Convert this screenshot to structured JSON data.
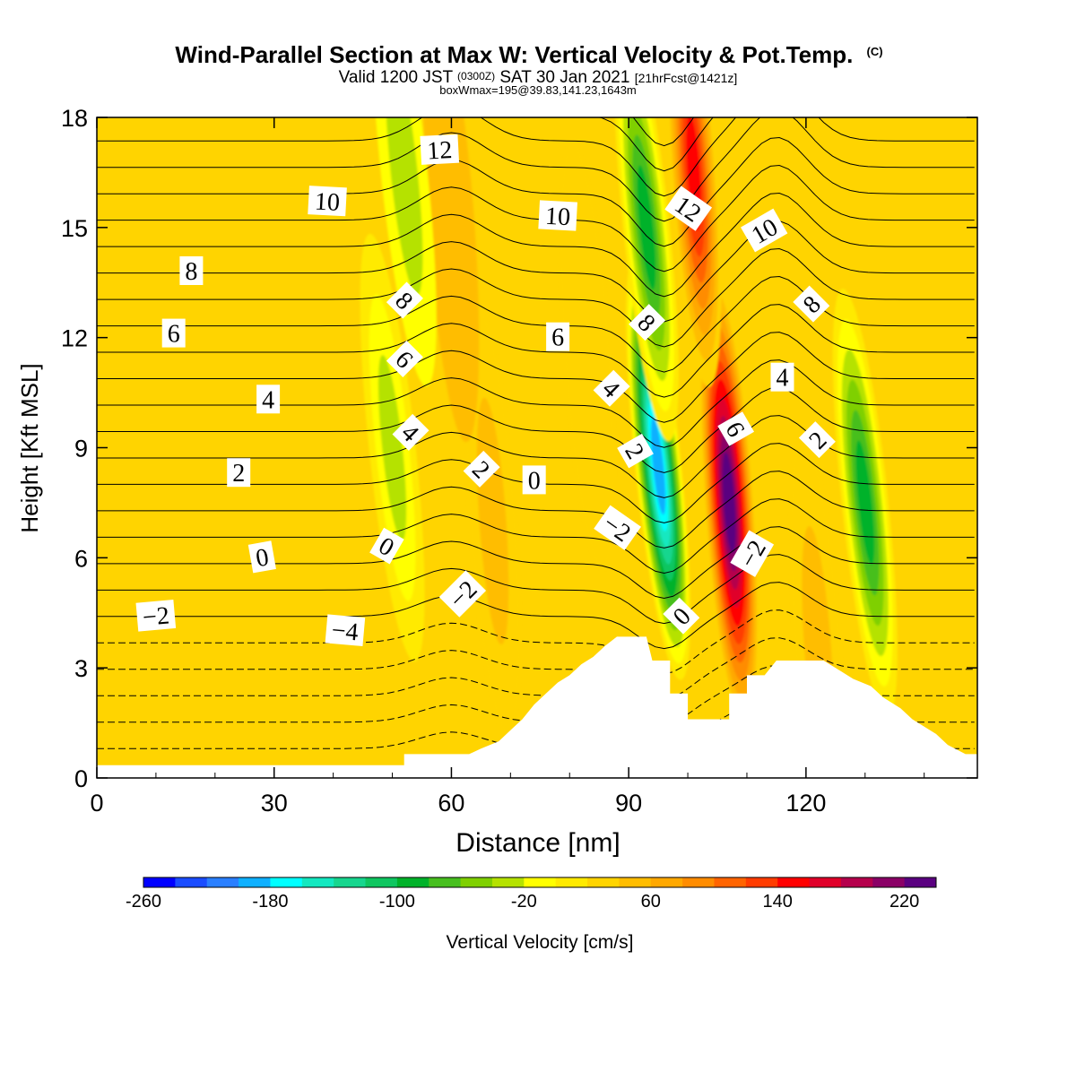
{
  "header": {
    "title": "Wind-Parallel Section at Max W: Vertical Velocity & Pot.Temp.",
    "copyright": "(C)",
    "valid_prefix": "Valid 1200 JST",
    "utc": "(0300Z)",
    "valid_date": "SAT 30 Jan 2021",
    "forecast": "[21hrFcst@1421z]",
    "boxinfo": "boxWmax=195@39.83,141.23,1643m"
  },
  "chart_data": {
    "type": "heatmap",
    "xlabel": "Distance [nm]",
    "ylabel": "Height [Kft MSL]",
    "xlim": [
      0,
      149
    ],
    "ylim": [
      0,
      18
    ],
    "xticks": [
      0,
      30,
      60,
      90,
      120
    ],
    "yticks": [
      0,
      3,
      6,
      9,
      12,
      15,
      18
    ],
    "colorbar": {
      "label": "Vertical Velocity [cm/s]",
      "min": -260,
      "max": 240,
      "step": 20,
      "tick_labels": [
        -260,
        -180,
        -100,
        -20,
        60,
        140,
        220
      ],
      "colors": [
        "#0000ff",
        "#1a4cff",
        "#2a7fff",
        "#0fb0ff",
        "#00ffff",
        "#13e8c0",
        "#17d68e",
        "#0fc660",
        "#00b22a",
        "#47bf1f",
        "#7fd000",
        "#b5e200",
        "#ffff00",
        "#ffea00",
        "#ffd400",
        "#ffbd00",
        "#ffa800",
        "#ff8c00",
        "#ff6400",
        "#ff3c00",
        "#ff0000",
        "#e0002a",
        "#b5004c",
        "#8a0066",
        "#5a0080"
      ]
    },
    "background_w": 20,
    "updrafts": [
      {
        "x": 107,
        "y": 7.5,
        "w": 220
      },
      {
        "x": 67,
        "y": 7.0,
        "w": 50
      },
      {
        "x": 60,
        "y": 15.0,
        "w": 45
      },
      {
        "x": 83,
        "y": 11.5,
        "w": 30
      },
      {
        "x": 101,
        "y": 16.5,
        "w": 150
      },
      {
        "x": 122,
        "y": 3.5,
        "w": 50
      }
    ],
    "downdrafts": [
      {
        "x": 95,
        "y": 8.5,
        "w": -200
      },
      {
        "x": 93,
        "y": 15.0,
        "w": -100
      },
      {
        "x": 130,
        "y": 7.5,
        "w": -90
      },
      {
        "x": 50,
        "y": 9.0,
        "w": -40
      },
      {
        "x": 52,
        "y": 16.5,
        "w": -25
      }
    ],
    "theta_labels": [
      {
        "text": "12",
        "x": 58,
        "y": 17.1,
        "rot": -3
      },
      {
        "text": "10",
        "x": 39,
        "y": 15.7,
        "rot": 3
      },
      {
        "text": "10",
        "x": 78,
        "y": 15.3,
        "rot": 3
      },
      {
        "text": "12",
        "x": 100,
        "y": 15.5,
        "rot": 35
      },
      {
        "text": "10",
        "x": 113,
        "y": 14.9,
        "rot": -30
      },
      {
        "text": "8",
        "x": 16,
        "y": 13.8,
        "rot": 0
      },
      {
        "text": "8",
        "x": 52,
        "y": 13.0,
        "rot": 45
      },
      {
        "text": "8",
        "x": 93,
        "y": 12.4,
        "rot": 45
      },
      {
        "text": "8",
        "x": 121,
        "y": 12.9,
        "rot": -45
      },
      {
        "text": "6",
        "x": 13,
        "y": 12.1,
        "rot": 0
      },
      {
        "text": "6",
        "x": 78,
        "y": 12.0,
        "rot": 0
      },
      {
        "text": "6",
        "x": 52,
        "y": 11.4,
        "rot": 45
      },
      {
        "text": "4",
        "x": 29,
        "y": 10.3,
        "rot": 0
      },
      {
        "text": "4",
        "x": 87,
        "y": 10.6,
        "rot": 45
      },
      {
        "text": "4",
        "x": 116,
        "y": 10.9,
        "rot": 0
      },
      {
        "text": "4",
        "x": 53,
        "y": 9.4,
        "rot": 45
      },
      {
        "text": "6",
        "x": 108,
        "y": 9.5,
        "rot": 60
      },
      {
        "text": "2",
        "x": 91,
        "y": 8.9,
        "rot": 60
      },
      {
        "text": "2",
        "x": 122,
        "y": 9.2,
        "rot": -45
      },
      {
        "text": "2",
        "x": 65,
        "y": 8.4,
        "rot": 45
      },
      {
        "text": "2",
        "x": 24,
        "y": 8.3,
        "rot": 0
      },
      {
        "text": "0",
        "x": 74,
        "y": 8.1,
        "rot": 0
      },
      {
        "text": "−2",
        "x": 88,
        "y": 6.8,
        "rot": 35
      },
      {
        "text": "−2",
        "x": 111,
        "y": 6.1,
        "rot": -60
      },
      {
        "text": "0",
        "x": 28,
        "y": 6.0,
        "rot": -10
      },
      {
        "text": "0",
        "x": 49,
        "y": 6.3,
        "rot": 30
      },
      {
        "text": "−2",
        "x": 62,
        "y": 5.0,
        "rot": -45
      },
      {
        "text": "0",
        "x": 99,
        "y": 4.4,
        "rot": -45
      },
      {
        "text": "−2",
        "x": 10,
        "y": 4.4,
        "rot": -5
      },
      {
        "text": "−4",
        "x": 42,
        "y": 4.0,
        "rot": 5
      }
    ],
    "terrain": [
      [
        0,
        0.35
      ],
      [
        52,
        0.35
      ],
      [
        52,
        0.65
      ],
      [
        63,
        0.65
      ],
      [
        65,
        0.8
      ],
      [
        68,
        1.0
      ],
      [
        70,
        1.3
      ],
      [
        72,
        1.6
      ],
      [
        74,
        2.0
      ],
      [
        76,
        2.3
      ],
      [
        78,
        2.6
      ],
      [
        80,
        2.8
      ],
      [
        82,
        3.1
      ],
      [
        84,
        3.3
      ],
      [
        86,
        3.6
      ],
      [
        88,
        3.85
      ],
      [
        90,
        3.85
      ],
      [
        93,
        3.85
      ],
      [
        94,
        3.2
      ],
      [
        97,
        3.2
      ],
      [
        97,
        2.3
      ],
      [
        100,
        2.3
      ],
      [
        100,
        1.6
      ],
      [
        107,
        1.6
      ],
      [
        107,
        2.3
      ],
      [
        110,
        2.3
      ],
      [
        110,
        2.8
      ],
      [
        113,
        2.8
      ],
      [
        115,
        3.2
      ],
      [
        123,
        3.2
      ],
      [
        126,
        2.9
      ],
      [
        128,
        2.7
      ],
      [
        131,
        2.5
      ],
      [
        133,
        2.2
      ],
      [
        136,
        1.9
      ],
      [
        138,
        1.6
      ],
      [
        142,
        1.2
      ],
      [
        144,
        0.9
      ],
      [
        147,
        0.65
      ],
      [
        149,
        0.65
      ]
    ]
  }
}
